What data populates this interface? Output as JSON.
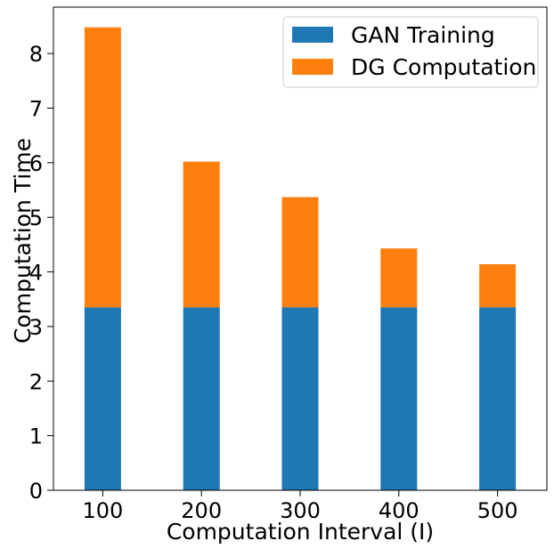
{
  "chart_data": {
    "type": "bar",
    "stacked": true,
    "categories": [
      "100",
      "200",
      "300",
      "400",
      "500"
    ],
    "series": [
      {
        "name": "GAN Training",
        "color": "#1f77b4",
        "values": [
          3.35,
          3.35,
          3.35,
          3.35,
          3.35
        ]
      },
      {
        "name": "DG Computation",
        "color": "#ff7f0e",
        "values": [
          5.13,
          2.67,
          2.02,
          1.08,
          0.79
        ]
      }
    ],
    "title": "",
    "xlabel": "Computation Interval (I)",
    "ylabel": "Computation Time",
    "ylim": [
      0,
      8.85
    ],
    "yticks": [
      0,
      1,
      2,
      3,
      4,
      5,
      6,
      7,
      8
    ],
    "grid": false,
    "legend_position": "top-right"
  }
}
